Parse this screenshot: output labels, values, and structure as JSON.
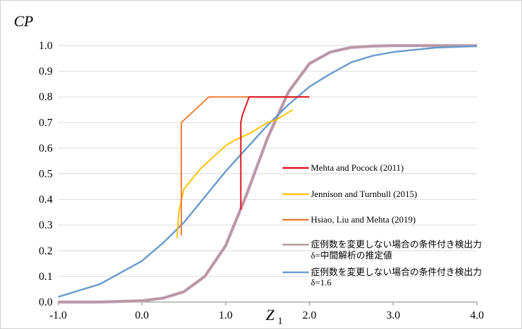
{
  "chart_data": {
    "type": "line",
    "ylabel": "CP",
    "xlabel_main": "Z",
    "xlabel_sub": "1",
    "xlim": [
      -1.0,
      4.0
    ],
    "ylim": [
      0.0,
      1.0
    ],
    "xticks": [
      "-1.0",
      "0.0",
      "1.0",
      "2.0",
      "3.0",
      "4.0"
    ],
    "yticks": [
      "0.0",
      "0.1",
      "0.2",
      "0.3",
      "0.4",
      "0.5",
      "0.6",
      "0.7",
      "0.8",
      "0.9",
      "1.0"
    ],
    "grid": "horizontal",
    "legend_position": "inside-right",
    "series": [
      {
        "name": "Mehta and Pocock (2011)",
        "color": "#e0141e",
        "x": [
          1.18,
          1.18,
          1.2,
          1.28,
          2.0
        ],
        "y": [
          0.36,
          0.7,
          0.73,
          0.8,
          0.8
        ]
      },
      {
        "name": "Jennison and Turnbull (2015)",
        "color": "#ffc000",
        "x": [
          0.42,
          0.44,
          0.5,
          0.6,
          0.7,
          0.8,
          0.9,
          1.0,
          1.1,
          1.2,
          1.3,
          1.4,
          1.5,
          1.6,
          1.7,
          1.8
        ],
        "y": [
          0.25,
          0.35,
          0.44,
          0.48,
          0.52,
          0.55,
          0.58,
          0.61,
          0.63,
          0.645,
          0.66,
          0.68,
          0.7,
          0.71,
          0.73,
          0.75
        ]
      },
      {
        "name": "Hsiao, Liu and Mehta (2019)",
        "color": "#ed7d31",
        "x": [
          0.47,
          0.47,
          0.8,
          2.0
        ],
        "y": [
          0.26,
          0.7,
          0.8,
          0.8
        ]
      },
      {
        "name_line1": "症例数を変更しない場合の条件付き検出力",
        "name_line2": "δ=中間解析の推定値",
        "color": "#b09a9a",
        "color_outline": "#d3a0c8",
        "x": [
          -1.0,
          -0.5,
          0.0,
          0.25,
          0.5,
          0.75,
          1.0,
          1.25,
          1.5,
          1.75,
          2.0,
          2.25,
          2.5,
          2.75,
          3.0,
          3.5,
          4.0
        ],
        "y": [
          0.0,
          0.0,
          0.005,
          0.015,
          0.04,
          0.1,
          0.22,
          0.42,
          0.64,
          0.82,
          0.93,
          0.975,
          0.993,
          0.998,
          1.0,
          1.0,
          1.0
        ]
      },
      {
        "name_line1": "症例数を変更しない場合の条件付き検出力",
        "name_line2": "δ=1.6",
        "color": "#6a9ccc",
        "x": [
          -1.0,
          -0.5,
          0.0,
          0.25,
          0.5,
          0.75,
          1.0,
          1.25,
          1.5,
          1.75,
          2.0,
          2.25,
          2.5,
          2.75,
          3.0,
          3.5,
          4.0
        ],
        "y": [
          0.02,
          0.07,
          0.16,
          0.23,
          0.31,
          0.41,
          0.51,
          0.6,
          0.69,
          0.77,
          0.84,
          0.89,
          0.935,
          0.96,
          0.975,
          0.992,
          0.998
        ]
      }
    ]
  }
}
